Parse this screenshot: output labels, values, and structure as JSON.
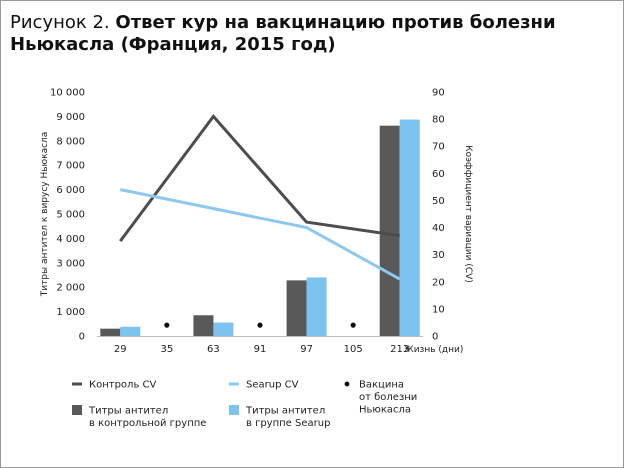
{
  "title": {
    "lead": "Рисунок 2.",
    "main": "Ответ кур на вакцинацию против болезни Ньюкасла (Франция, 2015 год)"
  },
  "chart_data": {
    "type": "bar",
    "categories": [
      "29",
      "35",
      "63",
      "91",
      "97",
      "105",
      "213"
    ],
    "xlabel": "Жизнь (дни)",
    "ylabel": "Титры антител к вирусу Ньюкасла",
    "ylabel_right": "Коэффициент вариации (CV)",
    "ylim": [
      0,
      10000
    ],
    "ylim_right": [
      0,
      90
    ],
    "yticks": [
      "0",
      "1 000",
      "2 000",
      "3 000",
      "4 000",
      "5 000",
      "6 000",
      "7 000",
      "8 000",
      "9 000",
      "10 000"
    ],
    "yticks_right": [
      "0",
      "10",
      "20",
      "30",
      "40",
      "50",
      "60",
      "70",
      "80",
      "90"
    ],
    "series": [
      {
        "name": "Титры антител в контрольной группе",
        "kind": "bar",
        "axis": "left",
        "color": "#595959",
        "values": [
          300,
          null,
          850,
          null,
          2280,
          null,
          8620
        ]
      },
      {
        "name": "Титры антител в группе Searup",
        "kind": "bar",
        "axis": "left",
        "color": "#7cc3ef",
        "values": [
          380,
          null,
          550,
          null,
          2400,
          null,
          8870
        ]
      },
      {
        "name": "Контроль CV",
        "kind": "line",
        "axis": "right",
        "color": "#4d4d4d",
        "values": [
          35,
          null,
          81,
          null,
          42,
          null,
          37
        ]
      },
      {
        "name": "Searup CV",
        "kind": "line",
        "axis": "right",
        "color": "#8ec8ef",
        "values": [
          54,
          null,
          null,
          null,
          40,
          null,
          21
        ]
      },
      {
        "name": "Вакцина от болезни Ньюкасла",
        "kind": "marker",
        "axis": "right",
        "color": "#111111",
        "values": [
          null,
          4,
          null,
          4,
          null,
          4,
          null
        ]
      }
    ],
    "legend": {
      "placement": "bottom",
      "items": [
        {
          "type": "line",
          "color": "#4d4d4d",
          "lines": [
            "Контроль CV"
          ]
        },
        {
          "type": "line",
          "color": "#8ec8ef",
          "lines": [
            "Searup CV"
          ]
        },
        {
          "type": "dot",
          "color": "#111111",
          "lines": [
            "Вакцина",
            "от болезни",
            "Ньюкасла"
          ]
        },
        {
          "type": "square",
          "color": "#595959",
          "lines": [
            "Титры антител",
            "в контрольной группе"
          ]
        },
        {
          "type": "square",
          "color": "#7cc3ef",
          "lines": [
            "Титры антител",
            "в группе Searup"
          ]
        }
      ]
    }
  }
}
